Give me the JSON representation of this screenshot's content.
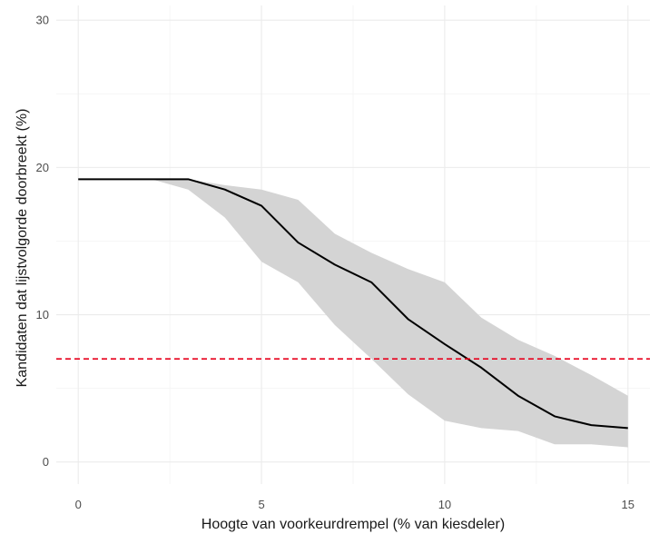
{
  "chart_data": {
    "type": "line",
    "title": "",
    "xlabel": "Hoogte van voorkeurdrempel (% van kiesdeler)",
    "ylabel": "Kandidaten dat lijstvolgorde doorbreekt (%)",
    "xlim": [
      -0.6,
      15.6
    ],
    "ylim": [
      -1.5,
      31.0
    ],
    "x_ticks": [
      0,
      5,
      10,
      15
    ],
    "x_tick_labels": [
      "0",
      "5",
      "10",
      "15"
    ],
    "y_ticks": [
      0,
      10,
      20,
      30
    ],
    "y_tick_labels": [
      "0",
      "10",
      "20",
      "30"
    ],
    "grid": true,
    "legend": "none",
    "series": [
      {
        "x": [
          0,
          1,
          2,
          3,
          4,
          5,
          6,
          7,
          8,
          9,
          10,
          11,
          12,
          13,
          14,
          15
        ],
        "values": [
          19.2,
          19.2,
          19.2,
          19.2,
          18.5,
          17.4,
          14.9,
          13.4,
          12.2,
          9.7,
          8.0,
          6.4,
          4.5,
          3.1,
          2.5,
          2.3
        ],
        "lower": [
          19.2,
          19.2,
          19.2,
          18.5,
          16.6,
          13.6,
          12.2,
          9.3,
          7.0,
          4.6,
          2.8,
          2.3,
          2.1,
          1.2,
          1.2,
          1.0
        ],
        "upper": [
          19.2,
          19.2,
          19.2,
          19.2,
          18.8,
          18.5,
          17.8,
          15.5,
          14.2,
          13.1,
          12.2,
          9.8,
          8.3,
          7.2,
          5.9,
          4.5
        ]
      }
    ],
    "reference_line": {
      "y": 7.0
    },
    "colors": {
      "line": "#000000",
      "ribbon": "#d4d4d4",
      "reference": "#e8001c",
      "grid_major": "#ebebeb",
      "grid_minor": "#f4f4f4"
    }
  }
}
